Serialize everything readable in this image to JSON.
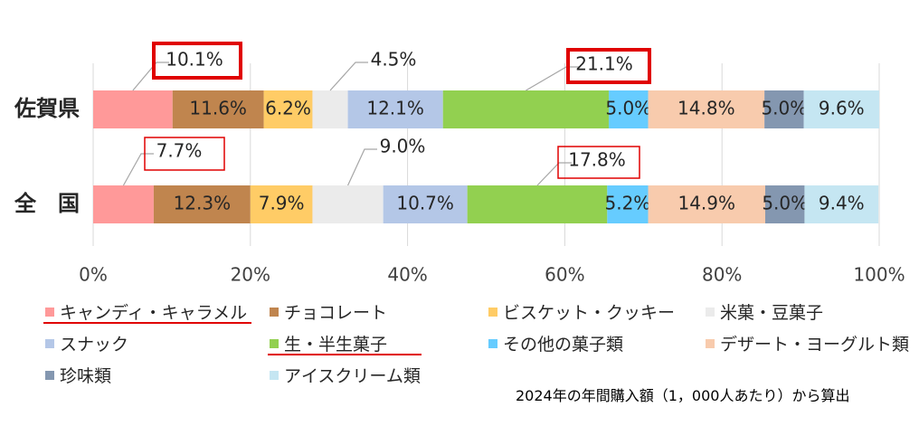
{
  "chart_data": {
    "type": "bar",
    "stacked": "percent",
    "orientation": "horizontal",
    "categories": [
      "佐賀県",
      "全　国"
    ],
    "xlim": [
      0,
      100
    ],
    "x_ticks": [
      "0%",
      "20%",
      "40%",
      "60%",
      "80%",
      "100%"
    ],
    "grid": true,
    "legend_position": "bottom",
    "series": [
      {
        "name": "キャンディ・キャラメル",
        "color": "#ff9999",
        "values": [
          10.1,
          7.7
        ],
        "labels": [
          "10.1%",
          "7.7%"
        ],
        "outside": true,
        "boxed": [
          true,
          true
        ],
        "underlined": true
      },
      {
        "name": "チョコレート",
        "color": "#c0854e",
        "values": [
          11.6,
          12.3
        ],
        "labels": [
          "11.6%",
          "12.3%"
        ]
      },
      {
        "name": "ビスケット・クッキー",
        "color": "#ffcc66",
        "values": [
          6.2,
          7.9
        ],
        "labels": [
          "6.2%",
          "7.9%"
        ]
      },
      {
        "name": "米菓・豆菓子",
        "color": "#ebebeb",
        "values": [
          4.5,
          9.0
        ],
        "labels": [
          "4.5%",
          "9.0%"
        ],
        "outside": true
      },
      {
        "name": "スナック",
        "color": "#b4c7e7",
        "values": [
          12.1,
          10.7
        ],
        "labels": [
          "12.1%",
          "10.7%"
        ]
      },
      {
        "name": "生・半生菓子",
        "color": "#92d050",
        "values": [
          21.1,
          17.8
        ],
        "labels": [
          "21.1%",
          "17.8%"
        ],
        "outside": true,
        "boxed": [
          true,
          true
        ],
        "underlined": true
      },
      {
        "name": "その他の菓子類",
        "color": "#66ccff",
        "values": [
          5.0,
          5.2
        ],
        "labels": [
          "5.0%",
          "5.2%"
        ]
      },
      {
        "name": "デザート・ヨーグルト類",
        "color": "#f8cbad",
        "values": [
          14.8,
          14.9
        ],
        "labels": [
          "14.8%",
          "14.9%"
        ]
      },
      {
        "name": "珍味類",
        "color": "#8497b0",
        "values": [
          5.0,
          5.0
        ],
        "labels": [
          "5.0%",
          "5.0%"
        ]
      },
      {
        "name": "アイスクリーム類",
        "color": "#c5e6f2",
        "values": [
          9.6,
          9.4
        ],
        "labels": [
          "9.6%",
          "9.4%"
        ]
      }
    ],
    "annotation": "2024年の年間購入額（1，000人あたり）から算出",
    "highlight_color": "#e00000"
  }
}
